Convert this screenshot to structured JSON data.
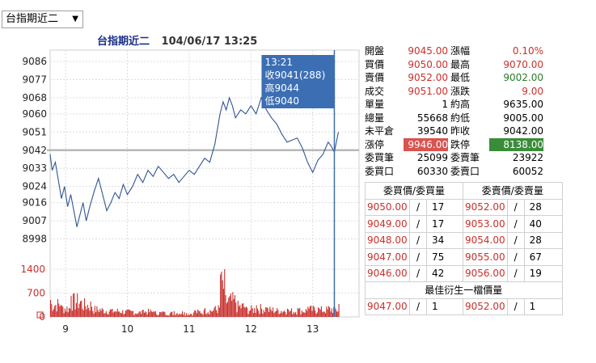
{
  "product_select": {
    "value": "台指期近二"
  },
  "header": {
    "name": "台指期近二",
    "datetime": "104/06/17 13:25"
  },
  "price_axis": [
    "9086",
    "9077",
    "9068",
    "9060",
    "9051",
    "9042",
    "9033",
    "9024",
    "9016",
    "9007",
    "8998"
  ],
  "volume_axis": [
    "1400",
    "700",
    "0"
  ],
  "time_axis": [
    "9",
    "10",
    "11",
    "12",
    "13"
  ],
  "tooltip": {
    "time": "13:21",
    "close": "收9041(288)",
    "high": "高9044",
    "low": "低9040"
  },
  "quote": {
    "rows": [
      {
        "l1": "開盤",
        "v1": "9045.00",
        "l2": "漲幅",
        "v2": "0.10%"
      },
      {
        "l1": "買價",
        "v1": "9050.00",
        "l2": "最高",
        "v2": "9070.00"
      },
      {
        "l1": "賣價",
        "v1": "9052.00",
        "l2": "最低",
        "v2": "9002.00"
      },
      {
        "l1": "成交",
        "v1": "9051.00",
        "l2": "漲跌",
        "v2": "9.00"
      },
      {
        "l1": "單量",
        "v1": "1",
        "l2": "約高",
        "v2": "9635.00"
      },
      {
        "l1": "總量",
        "v1": "55668",
        "l2": "約低",
        "v2": "9005.00"
      },
      {
        "l1": "未平倉",
        "v1": "39540",
        "l2": "昨收",
        "v2": "9042.00"
      },
      {
        "l1": "漲停",
        "v1": "9946.00",
        "l2": "跌停",
        "v2": "8138.00"
      },
      {
        "l1": "委買筆",
        "v1": "25099",
        "l2": "委賣筆",
        "v2": "23922"
      },
      {
        "l1": "委買口",
        "v1": "60330",
        "l2": "委賣口",
        "v2": "60052"
      }
    ]
  },
  "orderbook": {
    "bid_header": "委買價/委買量",
    "ask_header": "委賣價/委賣量",
    "separator": "/",
    "rows": [
      {
        "bid_price": "9050.00",
        "bid_qty": "17",
        "ask_price": "9052.00",
        "ask_qty": "28"
      },
      {
        "bid_price": "9049.00",
        "bid_qty": "17",
        "ask_price": "9053.00",
        "ask_qty": "40"
      },
      {
        "bid_price": "9048.00",
        "bid_qty": "34",
        "ask_price": "9054.00",
        "ask_qty": "28"
      },
      {
        "bid_price": "9047.00",
        "bid_qty": "75",
        "ask_price": "9055.00",
        "ask_qty": "67"
      },
      {
        "bid_price": "9046.00",
        "bid_qty": "42",
        "ask_price": "9056.00",
        "ask_qty": "19"
      }
    ],
    "best_title": "最佳衍生一檔價量",
    "best": {
      "bid_price": "9047.00",
      "bid_qty": "1",
      "ask_price": "9052.00",
      "ask_qty": "1"
    }
  },
  "colors": {
    "price_line": "#2f5597",
    "volume": "#c9302c",
    "ref_line": "#b8b8b8",
    "tooltip_bg": "#3c6eb4",
    "up": "#c9302c",
    "down": "#2a7a2a"
  },
  "chart_data": {
    "type": "line",
    "x_range": [
      "08:45",
      "13:45"
    ],
    "y_range": [
      8993,
      9090
    ],
    "reference": 9042,
    "price_series": [
      [
        "08:45",
        9040
      ],
      [
        "08:47",
        9032
      ],
      [
        "08:50",
        9036
      ],
      [
        "08:53",
        9027
      ],
      [
        "08:56",
        9018
      ],
      [
        "08:59",
        9024
      ],
      [
        "09:02",
        9014
      ],
      [
        "09:05",
        9020
      ],
      [
        "09:08",
        9012
      ],
      [
        "09:11",
        9004
      ],
      [
        "09:14",
        9010
      ],
      [
        "09:17",
        9016
      ],
      [
        "09:20",
        9007
      ],
      [
        "09:24",
        9015
      ],
      [
        "09:28",
        9022
      ],
      [
        "09:32",
        9028
      ],
      [
        "09:36",
        9020
      ],
      [
        "09:40",
        9012
      ],
      [
        "09:44",
        9016
      ],
      [
        "09:48",
        9021
      ],
      [
        "09:52",
        9018
      ],
      [
        "09:56",
        9025
      ],
      [
        "10:00",
        9020
      ],
      [
        "10:05",
        9024
      ],
      [
        "10:10",
        9030
      ],
      [
        "10:15",
        9026
      ],
      [
        "10:20",
        9032
      ],
      [
        "10:25",
        9029
      ],
      [
        "10:30",
        9034
      ],
      [
        "10:35",
        9031
      ],
      [
        "10:40",
        9028
      ],
      [
        "10:45",
        9030
      ],
      [
        "10:50",
        9026
      ],
      [
        "10:55",
        9029
      ],
      [
        "11:00",
        9032
      ],
      [
        "11:05",
        9030
      ],
      [
        "11:10",
        9034
      ],
      [
        "11:15",
        9038
      ],
      [
        "11:20",
        9036
      ],
      [
        "11:25",
        9045
      ],
      [
        "11:30",
        9060
      ],
      [
        "11:33",
        9066
      ],
      [
        "11:36",
        9062
      ],
      [
        "11:39",
        9068
      ],
      [
        "11:42",
        9064
      ],
      [
        "11:45",
        9058
      ],
      [
        "11:50",
        9062
      ],
      [
        "11:55",
        9060
      ],
      [
        "12:00",
        9064
      ],
      [
        "12:05",
        9060
      ],
      [
        "12:10",
        9068
      ],
      [
        "12:15",
        9062
      ],
      [
        "12:20",
        9058
      ],
      [
        "12:25",
        9055
      ],
      [
        "12:30",
        9050
      ],
      [
        "12:35",
        9046
      ],
      [
        "12:40",
        9047
      ],
      [
        "12:45",
        9048
      ],
      [
        "12:50",
        9043
      ],
      [
        "12:55",
        9036
      ],
      [
        "13:00",
        9031
      ],
      [
        "13:05",
        9037
      ],
      [
        "13:10",
        9040
      ],
      [
        "13:15",
        9046
      ],
      [
        "13:18",
        9044
      ],
      [
        "13:21",
        9041
      ],
      [
        "13:25",
        9051
      ]
    ],
    "volume_series": [
      [
        "08:45",
        500
      ],
      [
        "08:55",
        350
      ],
      [
        "09:05",
        620
      ],
      [
        "09:15",
        480
      ],
      [
        "09:25",
        300
      ],
      [
        "09:35",
        260
      ],
      [
        "09:45",
        240
      ],
      [
        "09:55",
        200
      ],
      [
        "10:05",
        180
      ],
      [
        "10:15",
        210
      ],
      [
        "10:25",
        160
      ],
      [
        "10:35",
        150
      ],
      [
        "10:45",
        170
      ],
      [
        "10:55",
        140
      ],
      [
        "11:05",
        200
      ],
      [
        "11:15",
        260
      ],
      [
        "11:25",
        320
      ],
      [
        "11:30",
        1250
      ],
      [
        "11:35",
        640
      ],
      [
        "11:45",
        420
      ],
      [
        "11:55",
        300
      ],
      [
        "12:05",
        340
      ],
      [
        "12:15",
        280
      ],
      [
        "12:25",
        260
      ],
      [
        "12:35",
        240
      ],
      [
        "12:45",
        260
      ],
      [
        "12:55",
        300
      ],
      [
        "13:05",
        280
      ],
      [
        "13:15",
        320
      ],
      [
        "13:21",
        288
      ],
      [
        "13:25",
        380
      ]
    ]
  }
}
